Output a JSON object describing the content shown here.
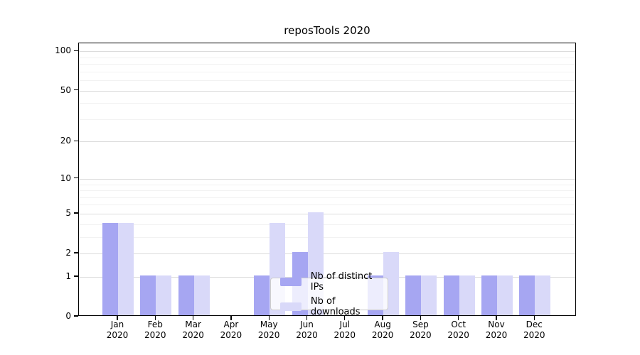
{
  "chart_data": {
    "type": "bar",
    "title": "reposTools 2020",
    "categories": [
      "Jan\n2020",
      "Feb\n2020",
      "Mar\n2020",
      "Apr\n2020",
      "May\n2020",
      "Jun\n2020",
      "Jul\n2020",
      "Aug\n2020",
      "Sep\n2020",
      "Oct\n2020",
      "Nov\n2020",
      "Dec\n2020"
    ],
    "series": [
      {
        "name": "Nb of distinct IPs",
        "color": "#a6a6f2",
        "values": [
          4,
          1,
          1,
          0,
          1,
          2,
          0,
          1,
          1,
          1,
          1,
          1
        ]
      },
      {
        "name": "Nb of downloads",
        "color": "#d9d9f9",
        "values": [
          4,
          1,
          1,
          0,
          4,
          5,
          0,
          2,
          1,
          1,
          1,
          1
        ]
      }
    ],
    "xlabel": "",
    "ylabel": "",
    "yticks": [
      0,
      1,
      2,
      5,
      10,
      20,
      50,
      100
    ],
    "minor_gridlines": [
      3,
      4,
      6,
      7,
      8,
      9,
      30,
      40,
      60,
      70,
      80,
      90
    ],
    "scale": "log1p",
    "ylim": [
      0,
      115
    ],
    "grid": "horizontal",
    "legend_position": "bottom-center",
    "colors": {
      "grid_major": "#dcdcdc",
      "grid_minor": "#f2f2f2",
      "axis": "#000000",
      "background": "#ffffff"
    }
  }
}
